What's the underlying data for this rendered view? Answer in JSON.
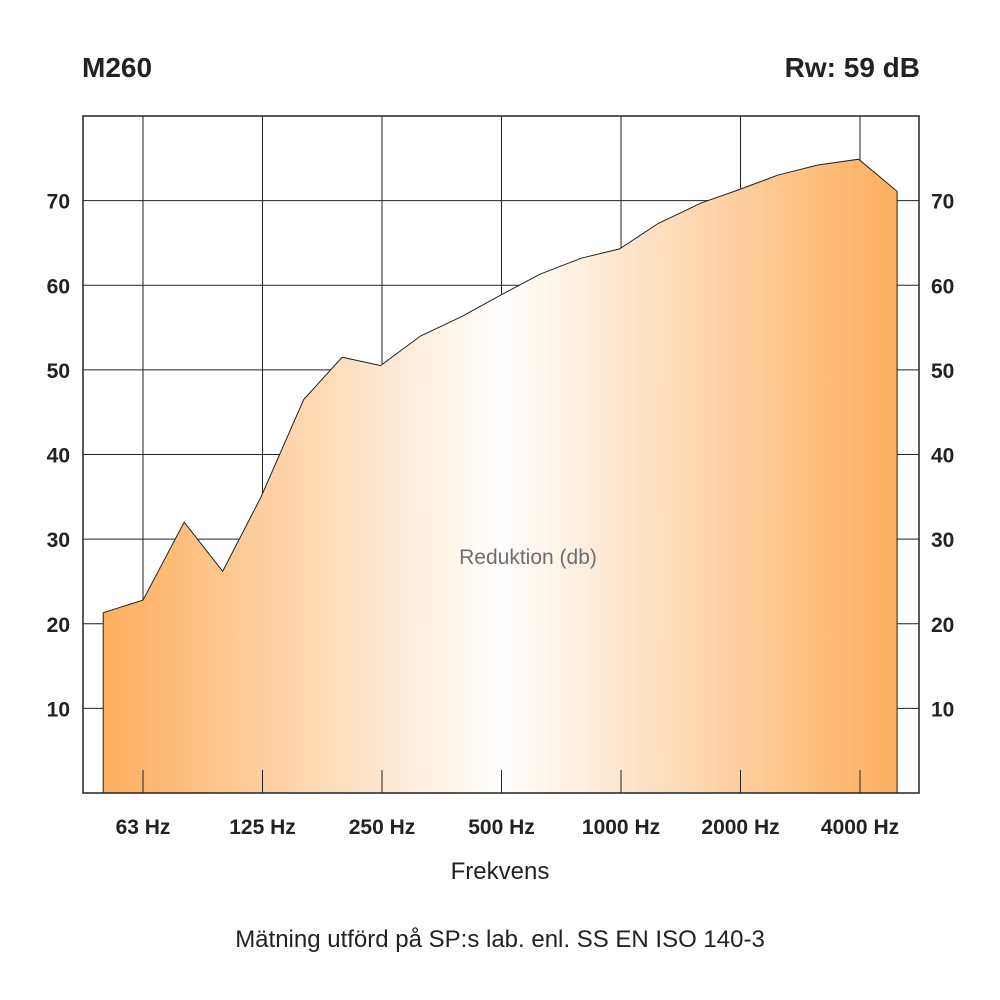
{
  "chart_data": {
    "type": "area",
    "title": "M260",
    "subtitle": "Rw: 59 dB",
    "xlabel": "Frekvens",
    "ylabel": "",
    "annotation": "Reduktion (db)",
    "footnote": "Mätning utförd på SP:s lab. enl. SS EN ISO 140-3",
    "x_ticks": [
      "63 Hz",
      "125 Hz",
      "250 Hz",
      "500 Hz",
      "1000 Hz",
      "2000 Hz",
      "4000 Hz"
    ],
    "y_ticks": [
      10,
      20,
      30,
      40,
      50,
      60,
      70
    ],
    "ylim": [
      0,
      80
    ],
    "grid": true,
    "fill_colors": {
      "edge": "#fdae5e",
      "center": "#ffffff"
    },
    "x": [
      50,
      63,
      80,
      100,
      125,
      160,
      200,
      250,
      315,
      400,
      500,
      630,
      800,
      1000,
      1250,
      1600,
      2000,
      2500,
      3150,
      4000,
      5000
    ],
    "values": [
      21.3,
      22.8,
      32,
      26.2,
      35,
      46.5,
      51.5,
      50.5,
      54,
      56.3,
      58.8,
      61.3,
      63.2,
      64.3,
      67.3,
      69.7,
      71.3,
      73,
      74.2,
      74.9,
      71.1
    ]
  }
}
